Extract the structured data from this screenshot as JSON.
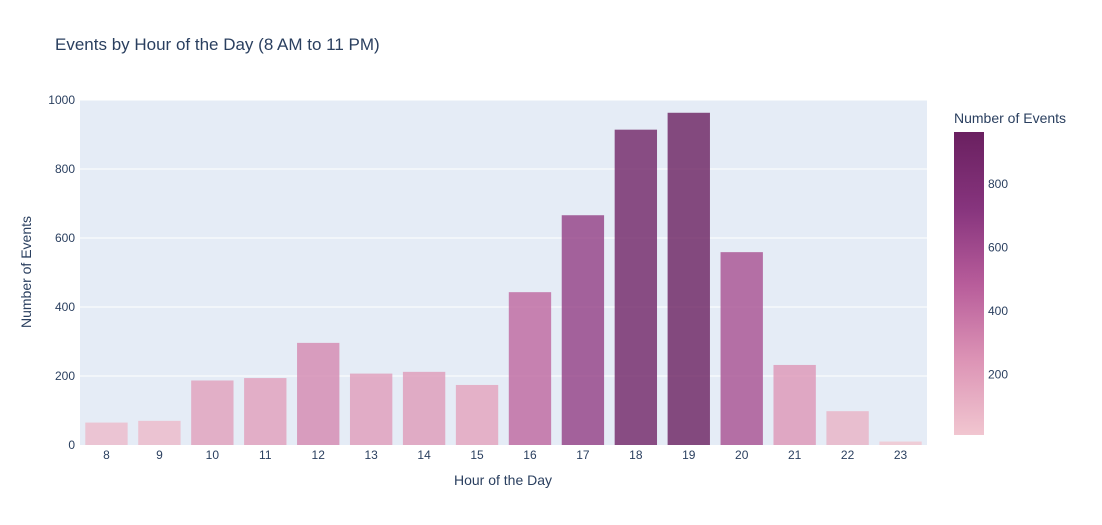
{
  "chart_data": {
    "type": "bar",
    "title": "Events by Hour of the Day (8 AM to 11 PM)",
    "xlabel": "Hour of the Day",
    "ylabel": "Number of Events",
    "categories": [
      "8",
      "9",
      "10",
      "11",
      "12",
      "13",
      "14",
      "15",
      "16",
      "17",
      "18",
      "19",
      "20",
      "21",
      "22",
      "23"
    ],
    "values": [
      65,
      70,
      187,
      194,
      296,
      207,
      212,
      174,
      443,
      666,
      914,
      963,
      559,
      232,
      98,
      10
    ],
    "ylim": [
      0,
      1000
    ],
    "yticks": [
      "0",
      "200",
      "400",
      "600",
      "800",
      "1000"
    ],
    "grid": true,
    "colorbar": {
      "title": "Number of Events",
      "range": [
        10,
        963
      ],
      "ticks": [
        "200",
        "400",
        "600",
        "800"
      ],
      "tick_values": [
        200,
        400,
        600,
        800
      ],
      "colorscale": [
        "#f1c6d0",
        "#dc93b5",
        "#b75c9a",
        "#86347d",
        "#6a2060"
      ]
    },
    "colors": {
      "plot_bg": "#e5ecf6",
      "grid": "#ffffff",
      "text": "#2a3f5f"
    }
  }
}
